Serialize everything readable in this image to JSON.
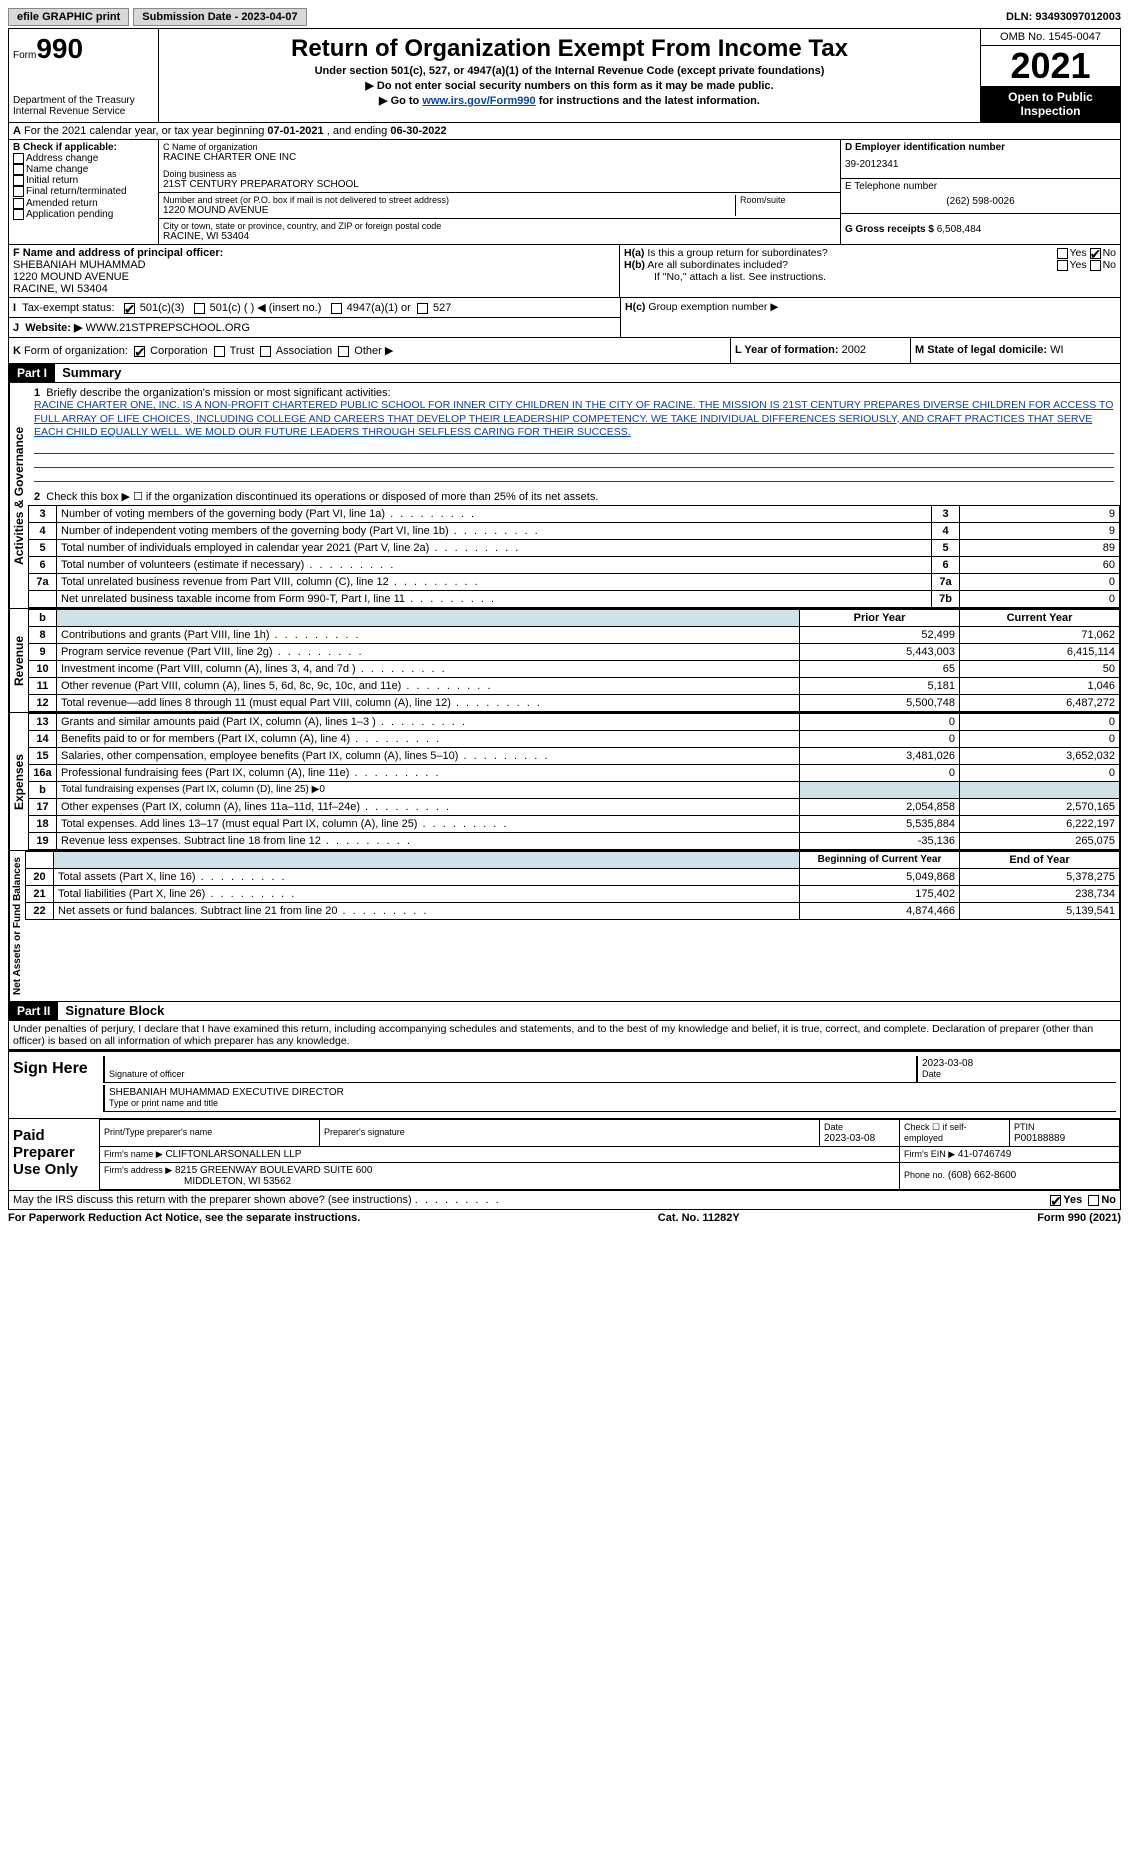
{
  "topbar": {
    "efile": "efile GRAPHIC print",
    "submission_label": "Submission Date - 2023-04-07",
    "dln": "DLN: 93493097012003"
  },
  "header": {
    "form_word": "Form",
    "form_num": "990",
    "dept": "Department of the Treasury",
    "irs": "Internal Revenue Service",
    "title": "Return of Organization Exempt From Income Tax",
    "sub": "Under section 501(c), 527, or 4947(a)(1) of the Internal Revenue Code (except private foundations)",
    "line1": "▶ Do not enter social security numbers on this form as it may be made public.",
    "line2a": "▶ Go to ",
    "line2link": "www.irs.gov/Form990",
    "line2b": " for instructions and the latest information.",
    "omb": "OMB No. 1545-0047",
    "year": "2021",
    "inspect": "Open to Public Inspection"
  },
  "A": {
    "text_a": "For the 2021 calendar year, or tax year beginning ",
    "begin": "07-01-2021",
    "text_b": " , and ending ",
    "end": "06-30-2022"
  },
  "B": {
    "hdr": "B Check if applicable:",
    "opts": [
      "Address change",
      "Name change",
      "Initial return",
      "Final return/terminated",
      "Amended return",
      "Application pending"
    ]
  },
  "C": {
    "name_lbl": "C Name of organization",
    "name": "RACINE CHARTER ONE INC",
    "dba_lbl": "Doing business as",
    "dba": "21ST CENTURY PREPARATORY SCHOOL",
    "addr_lbl": "Number and street (or P.O. box if mail is not delivered to street address)",
    "addr": "1220 MOUND AVENUE",
    "room_lbl": "Room/suite",
    "city_lbl": "City or town, state or province, country, and ZIP or foreign postal code",
    "city": "RACINE, WI  53404"
  },
  "D": {
    "lbl": "D Employer identification number",
    "val": "39-2012341"
  },
  "E": {
    "lbl": "E Telephone number",
    "val": "(262) 598-0026"
  },
  "G": {
    "lbl": "G Gross receipts $",
    "val": "6,508,484"
  },
  "F": {
    "lbl": "F  Name and address of principal officer:",
    "name": "SHEBANIAH MUHAMMAD",
    "addr1": "1220 MOUND AVENUE",
    "addr2": "RACINE, WI  53404"
  },
  "H": {
    "a": "Is this a group return for subordinates?",
    "b": "Are all subordinates included?",
    "note": "If \"No,\" attach a list. See instructions.",
    "c": "Group exemption number ▶",
    "yes": "Yes",
    "no": "No"
  },
  "I": {
    "lbl": "Tax-exempt status:",
    "o1": "501(c)(3)",
    "o2": "501(c) (  ) ◀ (insert no.)",
    "o3": "4947(a)(1) or",
    "o4": "527"
  },
  "J": {
    "lbl": "Website: ▶",
    "val": "WWW.21STPREPSCHOOL.ORG"
  },
  "K": {
    "lbl": "Form of organization:",
    "o1": "Corporation",
    "o2": "Trust",
    "o3": "Association",
    "o4": "Other ▶"
  },
  "L": {
    "lbl": "L Year of formation:",
    "val": "2002"
  },
  "M": {
    "lbl": "M State of legal domicile:",
    "val": "WI"
  },
  "part1": {
    "hdr": "Part I",
    "title": "Summary"
  },
  "mission_lbl": "Briefly describe the organization's mission or most significant activities:",
  "mission": "RACINE CHARTER ONE, INC. IS A NON-PROFIT CHARTERED PUBLIC SCHOOL FOR INNER CITY CHILDREN IN THE CITY OF RACINE. THE MISSION IS 21ST CENTURY PREPARES DIVERSE CHILDREN FOR ACCESS TO FULL ARRAY OF LIFE CHOICES, INCLUDING COLLEGE AND CAREERS THAT DEVELOP THEIR LEADERSHIP COMPETENCY. WE TAKE INDIVIDUAL DIFFERENCES SERIOUSLY, AND CRAFT PRACTICES THAT SERVE EACH CHILD EQUALLY WELL. WE MOLD OUR FUTURE LEADERS THROUGH SELFLESS CARING FOR THEIR SUCCESS.",
  "line2": "Check this box ▶ ☐ if the organization discontinued its operations or disposed of more than 25% of its net assets.",
  "gov": {
    "hdr": "Activities & Governance",
    "rows": [
      {
        "n": "3",
        "d": "Number of voting members of the governing body (Part VI, line 1a)",
        "c": "3",
        "v": "9"
      },
      {
        "n": "4",
        "d": "Number of independent voting members of the governing body (Part VI, line 1b)",
        "c": "4",
        "v": "9"
      },
      {
        "n": "5",
        "d": "Total number of individuals employed in calendar year 2021 (Part V, line 2a)",
        "c": "5",
        "v": "89"
      },
      {
        "n": "6",
        "d": "Total number of volunteers (estimate if necessary)",
        "c": "6",
        "v": "60"
      },
      {
        "n": "7a",
        "d": "Total unrelated business revenue from Part VIII, column (C), line 12",
        "c": "7a",
        "v": "0"
      },
      {
        "n": "",
        "d": "Net unrelated business taxable income from Form 990-T, Part I, line 11",
        "c": "7b",
        "v": "0"
      }
    ]
  },
  "rev": {
    "hdr": "Revenue",
    "cols": {
      "b": "b",
      "py": "Prior Year",
      "cy": "Current Year"
    },
    "rows": [
      {
        "n": "8",
        "d": "Contributions and grants (Part VIII, line 1h)",
        "py": "52,499",
        "cy": "71,062"
      },
      {
        "n": "9",
        "d": "Program service revenue (Part VIII, line 2g)",
        "py": "5,443,003",
        "cy": "6,415,114"
      },
      {
        "n": "10",
        "d": "Investment income (Part VIII, column (A), lines 3, 4, and 7d )",
        "py": "65",
        "cy": "50"
      },
      {
        "n": "11",
        "d": "Other revenue (Part VIII, column (A), lines 5, 6d, 8c, 9c, 10c, and 11e)",
        "py": "5,181",
        "cy": "1,046"
      },
      {
        "n": "12",
        "d": "Total revenue—add lines 8 through 11 (must equal Part VIII, column (A), line 12)",
        "py": "5,500,748",
        "cy": "6,487,272"
      }
    ]
  },
  "exp": {
    "hdr": "Expenses",
    "rows": [
      {
        "n": "13",
        "d": "Grants and similar amounts paid (Part IX, column (A), lines 1–3 )",
        "py": "0",
        "cy": "0"
      },
      {
        "n": "14",
        "d": "Benefits paid to or for members (Part IX, column (A), line 4)",
        "py": "0",
        "cy": "0"
      },
      {
        "n": "15",
        "d": "Salaries, other compensation, employee benefits (Part IX, column (A), lines 5–10)",
        "py": "3,481,026",
        "cy": "3,652,032"
      },
      {
        "n": "16a",
        "d": "Professional fundraising fees (Part IX, column (A), line 11e)",
        "py": "0",
        "cy": "0"
      },
      {
        "n": "b",
        "d": "Total fundraising expenses (Part IX, column (D), line 25) ▶0",
        "py": "",
        "cy": "",
        "shade": true
      },
      {
        "n": "17",
        "d": "Other expenses (Part IX, column (A), lines 11a–11d, 11f–24e)",
        "py": "2,054,858",
        "cy": "2,570,165"
      },
      {
        "n": "18",
        "d": "Total expenses. Add lines 13–17 (must equal Part IX, column (A), line 25)",
        "py": "5,535,884",
        "cy": "6,222,197"
      },
      {
        "n": "19",
        "d": "Revenue less expenses. Subtract line 18 from line 12",
        "py": "-35,136",
        "cy": "265,075"
      }
    ]
  },
  "net": {
    "hdr": "Net Assets or Fund Balances",
    "cols": {
      "py": "Beginning of Current Year",
      "cy": "End of Year"
    },
    "rows": [
      {
        "n": "20",
        "d": "Total assets (Part X, line 16)",
        "py": "5,049,868",
        "cy": "5,378,275"
      },
      {
        "n": "21",
        "d": "Total liabilities (Part X, line 26)",
        "py": "175,402",
        "cy": "238,734"
      },
      {
        "n": "22",
        "d": "Net assets or fund balances. Subtract line 21 from line 20",
        "py": "4,874,466",
        "cy": "5,139,541"
      }
    ]
  },
  "part2": {
    "hdr": "Part II",
    "title": "Signature Block"
  },
  "penalty": "Under penalties of perjury, I declare that I have examined this return, including accompanying schedules and statements, and to the best of my knowledge and belief, it is true, correct, and complete. Declaration of preparer (other than officer) is based on all information of which preparer has any knowledge.",
  "sign": {
    "here": "Sign Here",
    "sig_lbl": "Signature of officer",
    "date_lbl": "Date",
    "date": "2023-03-08",
    "name": "SHEBANIAH MUHAMMAD  EXECUTIVE DIRECTOR",
    "name_lbl": "Type or print name and title"
  },
  "prep": {
    "hdr": "Paid Preparer Use Only",
    "c1": "Print/Type preparer's name",
    "c2": "Preparer's signature",
    "c3": "Date",
    "c3v": "2023-03-08",
    "c4": "Check ☐ if self-employed",
    "c5": "PTIN",
    "c5v": "P00188889",
    "firm_lbl": "Firm's name   ▶",
    "firm": "CLIFTONLARSONALLEN LLP",
    "ein_lbl": "Firm's EIN ▶",
    "ein": "41-0746749",
    "addr_lbl": "Firm's address ▶",
    "addr1": "8215 GREENWAY BOULEVARD SUITE 600",
    "addr2": "MIDDLETON, WI  53562",
    "phone_lbl": "Phone no.",
    "phone": "(608) 662-8600"
  },
  "discuss": "May the IRS discuss this return with the preparer shown above? (see instructions)",
  "footer": {
    "l": "For Paperwork Reduction Act Notice, see the separate instructions.",
    "m": "Cat. No. 11282Y",
    "r": "Form 990 (2021)"
  }
}
